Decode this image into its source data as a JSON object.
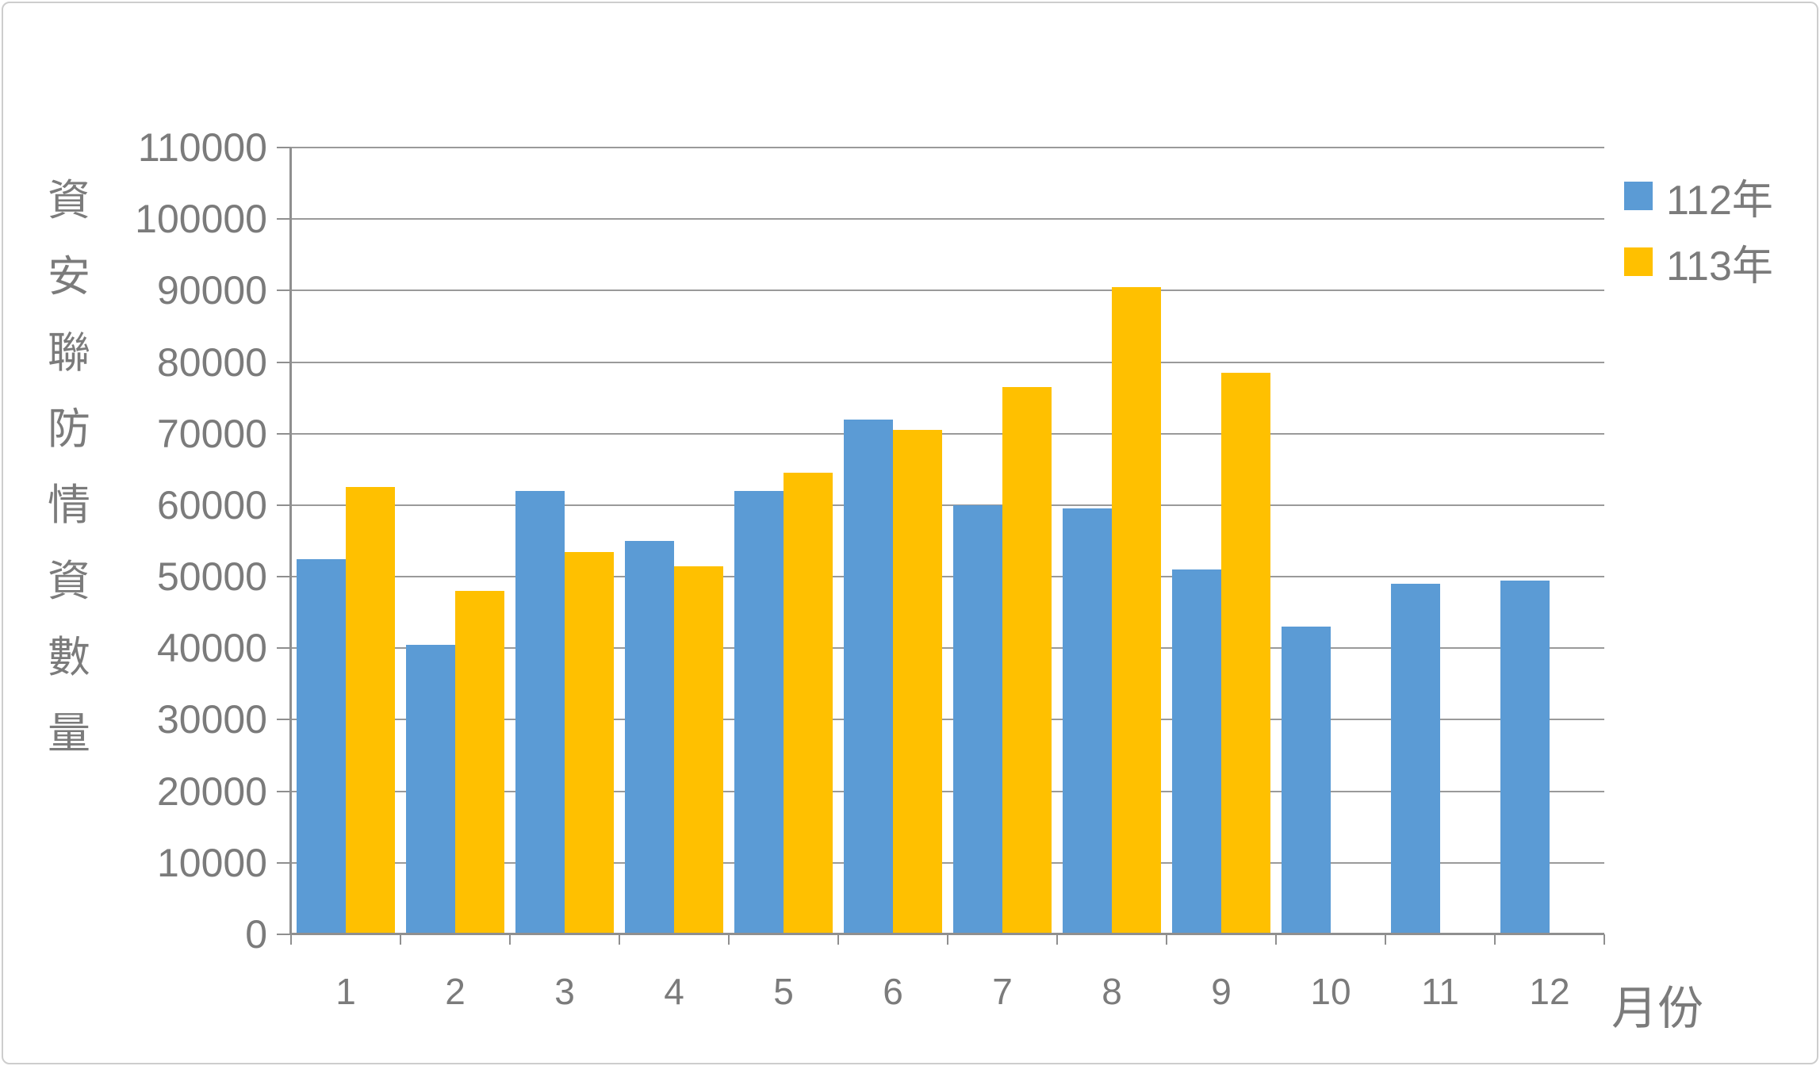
{
  "chart_data": {
    "type": "bar",
    "title": "",
    "categories": [
      "1",
      "2",
      "3",
      "4",
      "5",
      "6",
      "7",
      "8",
      "9",
      "10",
      "11",
      "12"
    ],
    "series": [
      {
        "name": "112年",
        "color": "#5B9BD5",
        "values": [
          52500,
          40500,
          62000,
          55000,
          62000,
          72000,
          60000,
          59500,
          51000,
          43000,
          49000,
          49500
        ]
      },
      {
        "name": "113年",
        "color": "#FFC000",
        "values": [
          62500,
          48000,
          53500,
          51500,
          64500,
          70500,
          76500,
          90500,
          78500,
          null,
          null,
          null
        ]
      }
    ],
    "xlabel": "月份",
    "ylabel": "資安聯防情資數量",
    "ylim": [
      0,
      110000
    ],
    "ytick_step": 10000,
    "yticks": [
      "0",
      "10000",
      "20000",
      "30000",
      "40000",
      "50000",
      "60000",
      "70000",
      "80000",
      "90000",
      "100000",
      "110000"
    ],
    "grid": true,
    "legend_position": "right"
  },
  "colors": {
    "text": "#7B7B7B",
    "gridline": "#9A9A9A",
    "axis": "#8F8F8F",
    "frame_border": "#CDCDCD",
    "background": "#FFFFFF"
  }
}
